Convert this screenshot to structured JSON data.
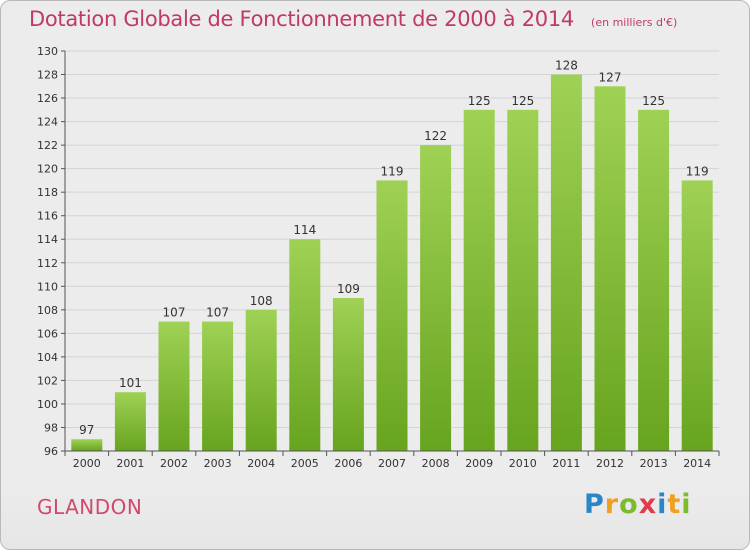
{
  "header": {
    "title": "Dotation Globale de Fonctionnement de 2000 à 2014",
    "subtitle": "(en milliers d'€)"
  },
  "footer": {
    "commune": "GLANDON",
    "logo_text": "Proxiti"
  },
  "colors": {
    "title": "#c03a63",
    "bar_light": "#9fd155",
    "bar_dark": "#67a41e",
    "grid": "#d4d4d4",
    "axis_text": "#333333"
  },
  "chart_data": {
    "type": "bar",
    "title": "Dotation Globale de Fonctionnement de 2000 à 2014",
    "subtitle": "(en milliers d'€)",
    "xlabel": "",
    "ylabel": "",
    "categories": [
      "2000",
      "2001",
      "2002",
      "2003",
      "2004",
      "2005",
      "2006",
      "2007",
      "2008",
      "2009",
      "2010",
      "2011",
      "2012",
      "2013",
      "2014"
    ],
    "values": [
      97,
      101,
      107,
      107,
      108,
      114,
      109,
      119,
      122,
      125,
      125,
      128,
      127,
      125,
      119
    ],
    "ylim": [
      96,
      130
    ],
    "yticks": [
      96,
      98,
      100,
      102,
      104,
      106,
      108,
      110,
      112,
      114,
      116,
      118,
      120,
      122,
      124,
      126,
      128,
      130
    ],
    "grid": true,
    "legend": "none"
  }
}
